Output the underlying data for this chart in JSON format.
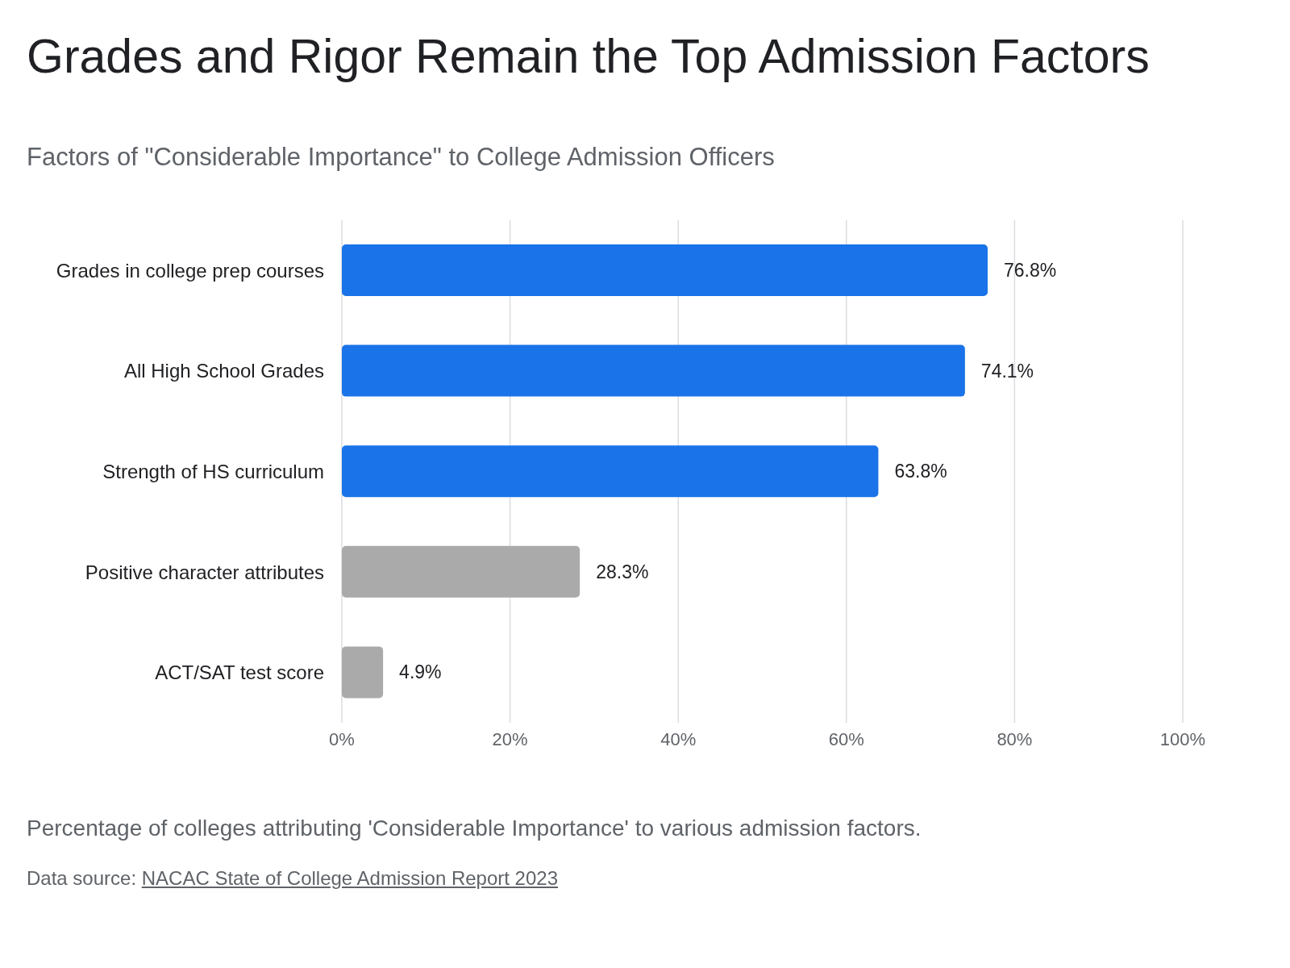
{
  "chart_data": {
    "type": "bar",
    "orientation": "horizontal",
    "title": "Grades and Rigor Remain the Top Admission Factors",
    "subtitle": "Factors of \"Considerable Importance\" to College Admission Officers",
    "categories": [
      "Grades in college prep courses",
      "All High School Grades",
      "Strength of HS curriculum",
      "Positive character attributes",
      "ACT/SAT test score"
    ],
    "values": [
      76.8,
      74.1,
      63.8,
      28.3,
      4.9
    ],
    "colors": [
      "#1a73e8",
      "#1a73e8",
      "#1a73e8",
      "#aaaaaa",
      "#aaaaaa"
    ],
    "value_labels": [
      "76.8%",
      "74.1%",
      "63.8%",
      "28.3%",
      "4.9%"
    ],
    "xlim": [
      0,
      100
    ],
    "xticks": [
      {
        "value": 0,
        "label": "0%"
      },
      {
        "value": 20,
        "label": "20%"
      },
      {
        "value": 40,
        "label": "40%"
      },
      {
        "value": 60,
        "label": "60%"
      },
      {
        "value": 80,
        "label": "80%"
      },
      {
        "value": 100,
        "label": "100%"
      }
    ],
    "grid": "x",
    "annotations": [
      "Percentage of colleges attributing 'Considerable Importance' to various admission factors.",
      "Data source: NACAC State of College Admission Report 2023"
    ]
  }
}
